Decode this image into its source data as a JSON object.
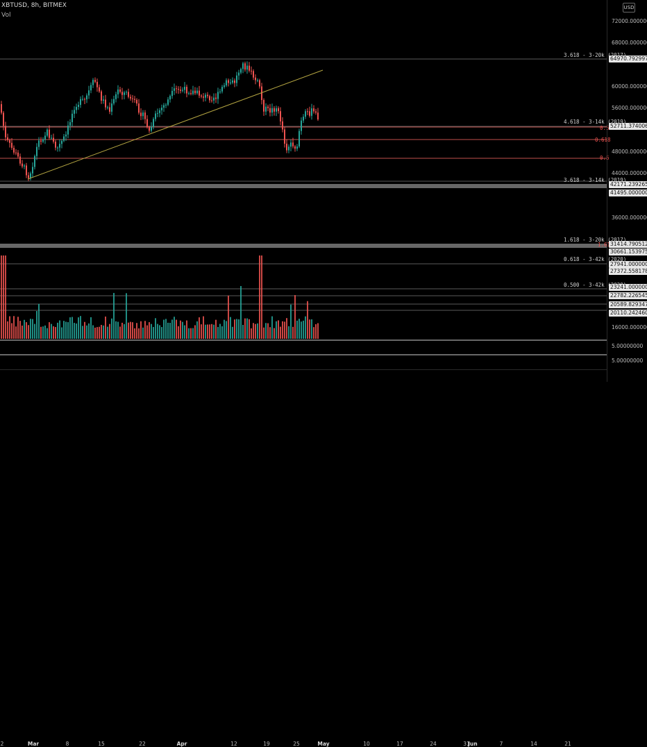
{
  "header": {
    "symbol_title": "XBTUSD, 8h, BITMEX",
    "volume_label": "Vol"
  },
  "currency_button": "USD",
  "price_ticks": [
    "72000.00000000",
    "68000.00000000",
    "60000.00000000",
    "56000.00000000",
    "48000.00000000",
    "44000.00000000",
    "36000.00000000",
    "16000.00000000",
    "5.00000000",
    "5.00000000"
  ],
  "price_labels": [
    "64970.79299741",
    "52711.37400603",
    "42171.23926577",
    "41495.00000000",
    "31414.79051270",
    "30661.15397587",
    "27941.00000000",
    "27372.55817875",
    "23241.00000000",
    "22782.22654528",
    "20589.82934720",
    "20110.24246012"
  ],
  "level_annotations": [
    "3.618 - 3-20k (2017)",
    "4.618 - 3-14k (2019)",
    "0.5",
    "0.618",
    "0.5",
    "3.618 - 3-14k (2019)",
    "1.618 - 3-20k (2017)",
    "1.618",
    "0.618 - 3-42k (2020)",
    "0.500 - 3-42k (2020)"
  ],
  "time_labels": [
    "2",
    "Mar",
    "8",
    "15",
    "22",
    "Apr",
    "12",
    "19",
    "25",
    "May",
    "10",
    "17",
    "24",
    "31",
    "Jun",
    "7",
    "14",
    "21"
  ],
  "colors": {
    "up": "#26a69a",
    "down": "#ef5350",
    "trendline": "#b5a642",
    "level_line": "#5a5a5a"
  }
}
